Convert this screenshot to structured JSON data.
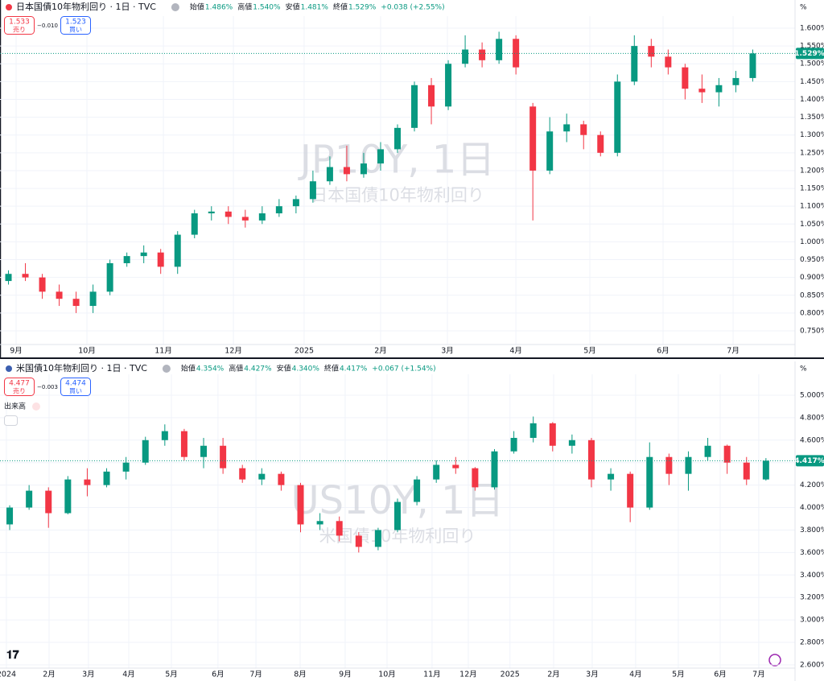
{
  "chart_data": [
    {
      "type": "candlestick",
      "title": "日本国債10年物利回り · 1日 · TVC",
      "flag_color": "#f23645",
      "ohlc_labels": [
        "始値",
        "高値",
        "安値",
        "終値"
      ],
      "ohlc_values": [
        "1.486%",
        "1.540%",
        "1.481%",
        "1.529%"
      ],
      "change": "+0.038 (+2.55%)",
      "sell": {
        "price": "1.533",
        "label": "売り"
      },
      "spread": "−0.010",
      "buy": {
        "price": "1.523",
        "label": "買い"
      },
      "unit": "%",
      "watermark": "JP10Y, 1日",
      "watermark_subtitle": "日本国債10年物利回り",
      "colors": {
        "up": "#089981",
        "down": "#f23645"
      },
      "grid": true,
      "xlim": [
        -0.5,
        46.5
      ],
      "xticks": [
        {
          "value": 0.45,
          "label": "9月"
        },
        {
          "value": 4.64,
          "label": "10月"
        },
        {
          "value": 9.16,
          "label": "11月"
        },
        {
          "value": 13.3,
          "label": "12月"
        },
        {
          "value": 17.48,
          "label": "2025"
        },
        {
          "value": 22.0,
          "label": "2月"
        },
        {
          "value": 25.95,
          "label": "3月"
        },
        {
          "value": 30.0,
          "label": "4月"
        },
        {
          "value": 34.37,
          "label": "5月"
        },
        {
          "value": 38.7,
          "label": "6月"
        },
        {
          "value": 42.84,
          "label": "7月"
        }
      ],
      "ylim": [
        0.7116,
        1.6226
      ],
      "yticks": [
        {
          "value": 0.75,
          "label": "0.750%"
        },
        {
          "value": 0.8,
          "label": "0.800%"
        },
        {
          "value": 0.85,
          "label": "0.850%"
        },
        {
          "value": 0.9,
          "label": "0.900%"
        },
        {
          "value": 0.95,
          "label": "0.950%"
        },
        {
          "value": 1.0,
          "label": "1.000%"
        },
        {
          "value": 1.05,
          "label": "1.050%"
        },
        {
          "value": 1.1,
          "label": "1.100%"
        },
        {
          "value": 1.15,
          "label": "1.150%"
        },
        {
          "value": 1.2,
          "label": "1.200%"
        },
        {
          "value": 1.25,
          "label": "1.250%"
        },
        {
          "value": 1.3,
          "label": "1.300%"
        },
        {
          "value": 1.35,
          "label": "1.350%"
        },
        {
          "value": 1.4,
          "label": "1.400%"
        },
        {
          "value": 1.45,
          "label": "1.450%"
        },
        {
          "value": 1.5,
          "label": "1.500%"
        },
        {
          "value": 1.55,
          "label": "1.550%"
        },
        {
          "value": 1.6,
          "label": "1.600%"
        }
      ],
      "last": {
        "value": 1.529,
        "label": "1.529%"
      },
      "candles": [
        [
          0.89,
          0.92,
          0.88,
          0.91
        ],
        [
          0.91,
          0.94,
          0.89,
          0.9
        ],
        [
          0.9,
          0.91,
          0.84,
          0.86
        ],
        [
          0.86,
          0.88,
          0.82,
          0.84
        ],
        [
          0.84,
          0.86,
          0.8,
          0.82
        ],
        [
          0.82,
          0.88,
          0.8,
          0.86
        ],
        [
          0.86,
          0.95,
          0.85,
          0.94
        ],
        [
          0.94,
          0.97,
          0.93,
          0.96
        ],
        [
          0.96,
          0.99,
          0.94,
          0.97
        ],
        [
          0.97,
          0.98,
          0.91,
          0.93
        ],
        [
          0.93,
          1.03,
          0.91,
          1.02
        ],
        [
          1.02,
          1.09,
          1.01,
          1.08
        ],
        [
          1.08,
          1.1,
          1.06,
          1.085
        ],
        [
          1.085,
          1.1,
          1.05,
          1.07
        ],
        [
          1.07,
          1.09,
          1.04,
          1.06
        ],
        [
          1.06,
          1.1,
          1.05,
          1.08
        ],
        [
          1.08,
          1.12,
          1.07,
          1.1
        ],
        [
          1.1,
          1.13,
          1.08,
          1.12
        ],
        [
          1.12,
          1.2,
          1.11,
          1.17
        ],
        [
          1.17,
          1.24,
          1.16,
          1.21
        ],
        [
          1.21,
          1.27,
          1.17,
          1.19
        ],
        [
          1.19,
          1.25,
          1.18,
          1.22
        ],
        [
          1.22,
          1.28,
          1.2,
          1.26
        ],
        [
          1.26,
          1.33,
          1.25,
          1.32
        ],
        [
          1.32,
          1.45,
          1.31,
          1.44
        ],
        [
          1.44,
          1.46,
          1.33,
          1.38
        ],
        [
          1.38,
          1.51,
          1.37,
          1.5
        ],
        [
          1.5,
          1.58,
          1.49,
          1.54
        ],
        [
          1.54,
          1.56,
          1.49,
          1.51
        ],
        [
          1.51,
          1.59,
          1.5,
          1.57
        ],
        [
          1.57,
          1.58,
          1.47,
          1.49
        ],
        [
          1.38,
          1.39,
          1.06,
          1.2
        ],
        [
          1.2,
          1.35,
          1.19,
          1.31
        ],
        [
          1.31,
          1.36,
          1.28,
          1.33
        ],
        [
          1.33,
          1.34,
          1.26,
          1.3
        ],
        [
          1.3,
          1.31,
          1.24,
          1.25
        ],
        [
          1.25,
          1.47,
          1.24,
          1.45
        ],
        [
          1.45,
          1.58,
          1.44,
          1.55
        ],
        [
          1.55,
          1.57,
          1.49,
          1.52
        ],
        [
          1.52,
          1.54,
          1.47,
          1.49
        ],
        [
          1.49,
          1.5,
          1.4,
          1.43
        ],
        [
          1.43,
          1.47,
          1.39,
          1.42
        ],
        [
          1.42,
          1.46,
          1.38,
          1.44
        ],
        [
          1.44,
          1.48,
          1.42,
          1.46
        ],
        [
          1.46,
          1.54,
          1.45,
          1.529
        ]
      ]
    },
    {
      "type": "candlestick",
      "title": "米国債10年物利回り · 1日 · TVC",
      "flag_color": "#3c5fb0",
      "ohlc_labels": [
        "始値",
        "高値",
        "安値",
        "終値"
      ],
      "ohlc_values": [
        "4.354%",
        "4.427%",
        "4.340%",
        "4.417%"
      ],
      "change": "+0.067 (+1.54%)",
      "sell": {
        "price": "4.477",
        "label": "売り"
      },
      "spread": "−0.003",
      "buy": {
        "price": "4.474",
        "label": "買い"
      },
      "volume_label": "出来高",
      "unit": "%",
      "watermark": "US10Y, 1日",
      "watermark_subtitle": "米国債10年物利回り",
      "colors": {
        "up": "#089981",
        "down": "#f23645"
      },
      "grid": true,
      "xlim": [
        -0.5,
        40.5
      ],
      "xticks": [
        {
          "value": -0.17,
          "label": "2024"
        },
        {
          "value": 2.03,
          "label": "2月"
        },
        {
          "value": 4.06,
          "label": "3月"
        },
        {
          "value": 6.14,
          "label": "4月"
        },
        {
          "value": 8.34,
          "label": "5月"
        },
        {
          "value": 10.74,
          "label": "6月"
        },
        {
          "value": 12.7,
          "label": "7月"
        },
        {
          "value": 14.98,
          "label": "8月"
        },
        {
          "value": 17.3,
          "label": "9月"
        },
        {
          "value": 19.46,
          "label": "10月"
        },
        {
          "value": 21.78,
          "label": "11月"
        },
        {
          "value": 23.65,
          "label": "12月"
        },
        {
          "value": 25.8,
          "label": "2025"
        },
        {
          "value": 28.05,
          "label": "2月"
        },
        {
          "value": 30.04,
          "label": "3月"
        },
        {
          "value": 32.28,
          "label": "4月"
        },
        {
          "value": 34.48,
          "label": "5月"
        },
        {
          "value": 36.64,
          "label": "6月"
        },
        {
          "value": 38.63,
          "label": "7月"
        }
      ],
      "ylim": [
        2.571,
        5.15
      ],
      "yticks": [
        {
          "value": 2.6,
          "label": "2.600%"
        },
        {
          "value": 2.8,
          "label": "2.800%"
        },
        {
          "value": 3.0,
          "label": "3.000%"
        },
        {
          "value": 3.2,
          "label": "3.200%"
        },
        {
          "value": 3.4,
          "label": "3.400%"
        },
        {
          "value": 3.6,
          "label": "3.600%"
        },
        {
          "value": 3.8,
          "label": "3.800%"
        },
        {
          "value": 4.0,
          "label": "4.000%"
        },
        {
          "value": 4.2,
          "label": "4.200%"
        },
        {
          "value": 4.4,
          "label": "4.400%"
        },
        {
          "value": 4.6,
          "label": "4.600%"
        },
        {
          "value": 4.8,
          "label": "4.800%"
        },
        {
          "value": 5.0,
          "label": "5.000%"
        }
      ],
      "last": {
        "value": 4.417,
        "label": "4.417%"
      },
      "candles": [
        [
          3.85,
          4.02,
          3.8,
          4.0
        ],
        [
          4.0,
          4.2,
          3.98,
          4.15
        ],
        [
          4.15,
          4.18,
          3.82,
          3.95
        ],
        [
          3.95,
          4.28,
          3.94,
          4.25
        ],
        [
          4.25,
          4.35,
          4.1,
          4.2
        ],
        [
          4.2,
          4.35,
          4.18,
          4.32
        ],
        [
          4.32,
          4.45,
          4.25,
          4.4
        ],
        [
          4.4,
          4.63,
          4.38,
          4.6
        ],
        [
          4.6,
          4.74,
          4.55,
          4.68
        ],
        [
          4.68,
          4.7,
          4.42,
          4.45
        ],
        [
          4.45,
          4.62,
          4.35,
          4.55
        ],
        [
          4.55,
          4.62,
          4.3,
          4.35
        ],
        [
          4.35,
          4.38,
          4.22,
          4.25
        ],
        [
          4.25,
          4.35,
          4.2,
          4.3
        ],
        [
          4.3,
          4.32,
          4.15,
          4.2
        ],
        [
          4.2,
          4.22,
          3.78,
          3.85
        ],
        [
          3.85,
          3.95,
          3.8,
          3.88
        ],
        [
          3.88,
          3.92,
          3.7,
          3.75
        ],
        [
          3.75,
          3.78,
          3.6,
          3.65
        ],
        [
          3.65,
          3.82,
          3.62,
          3.8
        ],
        [
          3.8,
          4.08,
          3.78,
          4.05
        ],
        [
          4.05,
          4.28,
          4.02,
          4.25
        ],
        [
          4.25,
          4.42,
          4.22,
          4.38
        ],
        [
          4.38,
          4.45,
          4.3,
          4.35
        ],
        [
          4.35,
          4.36,
          4.15,
          4.18
        ],
        [
          4.18,
          4.52,
          4.16,
          4.5
        ],
        [
          4.5,
          4.68,
          4.48,
          4.62
        ],
        [
          4.62,
          4.81,
          4.58,
          4.75
        ],
        [
          4.75,
          4.76,
          4.5,
          4.55
        ],
        [
          4.55,
          4.65,
          4.48,
          4.6
        ],
        [
          4.6,
          4.62,
          4.18,
          4.25
        ],
        [
          4.25,
          4.35,
          4.15,
          4.3
        ],
        [
          4.3,
          4.32,
          3.87,
          4.0
        ],
        [
          4.0,
          4.58,
          3.98,
          4.45
        ],
        [
          4.45,
          4.48,
          4.2,
          4.3
        ],
        [
          4.3,
          4.5,
          4.15,
          4.45
        ],
        [
          4.45,
          4.62,
          4.42,
          4.55
        ],
        [
          4.55,
          4.56,
          4.3,
          4.4
        ],
        [
          4.4,
          4.45,
          4.2,
          4.25
        ],
        [
          4.25,
          4.44,
          4.24,
          4.417
        ]
      ]
    }
  ]
}
